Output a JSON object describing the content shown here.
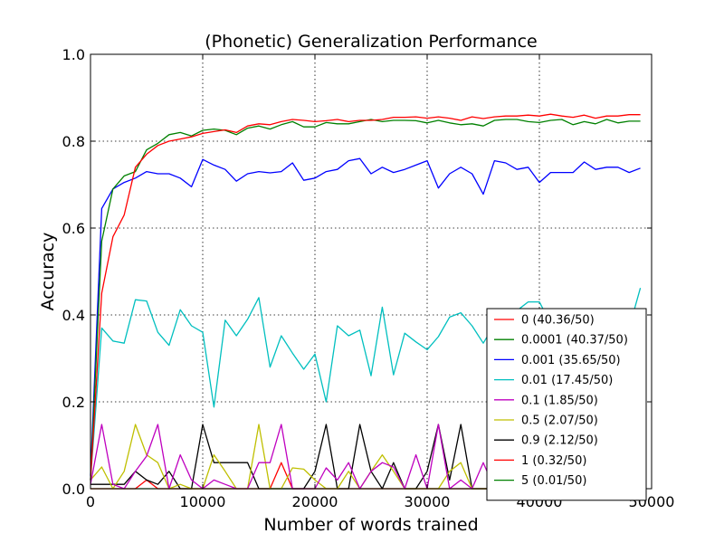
{
  "chart_data": {
    "type": "line",
    "title": "(Phonetic) Generalization Performance",
    "xlabel": "Number of words trained",
    "ylabel": "Accuracy",
    "xlim": [
      0,
      50000
    ],
    "ylim": [
      0,
      1.0
    ],
    "xticks": [
      0,
      10000,
      20000,
      30000,
      40000,
      50000
    ],
    "xtick_labels": [
      "0",
      "10000",
      "20000",
      "30000",
      "40000",
      "50000"
    ],
    "yticks": [
      0,
      0.2,
      0.4,
      0.6,
      0.8,
      1.0
    ],
    "ytick_labels": [
      "0.0",
      "0.2",
      "0.4",
      "0.6",
      "0.8",
      "1.0"
    ],
    "grid": true,
    "legend_position": "lower-right",
    "x": [
      0,
      1000,
      2000,
      3000,
      4000,
      5000,
      6000,
      7000,
      8000,
      9000,
      10000,
      11000,
      12000,
      13000,
      14000,
      15000,
      16000,
      17000,
      18000,
      19000,
      20000,
      21000,
      22000,
      23000,
      24000,
      25000,
      26000,
      27000,
      28000,
      29000,
      30000,
      31000,
      32000,
      33000,
      34000,
      35000,
      36000,
      37000,
      38000,
      39000,
      40000,
      41000,
      42000,
      43000,
      44000,
      45000,
      46000,
      47000,
      48000,
      49000
    ],
    "series": [
      {
        "name": "0 (40.36/50)",
        "color": "#ff0000",
        "values": [
          0.02,
          0.45,
          0.58,
          0.63,
          0.74,
          0.77,
          0.79,
          0.8,
          0.805,
          0.81,
          0.818,
          0.822,
          0.826,
          0.82,
          0.835,
          0.84,
          0.838,
          0.845,
          0.85,
          0.848,
          0.845,
          0.847,
          0.85,
          0.845,
          0.848,
          0.848,
          0.85,
          0.855,
          0.855,
          0.856,
          0.853,
          0.856,
          0.853,
          0.848,
          0.856,
          0.852,
          0.856,
          0.858,
          0.858,
          0.86,
          0.858,
          0.862,
          0.858,
          0.855,
          0.86,
          0.853,
          0.858,
          0.858,
          0.861,
          0.861
        ]
      },
      {
        "name": "0.0001 (40.37/50)",
        "color": "#008000",
        "values": [
          0.02,
          0.57,
          0.69,
          0.72,
          0.73,
          0.78,
          0.795,
          0.815,
          0.82,
          0.812,
          0.825,
          0.828,
          0.825,
          0.815,
          0.83,
          0.835,
          0.828,
          0.838,
          0.845,
          0.833,
          0.833,
          0.843,
          0.84,
          0.84,
          0.845,
          0.85,
          0.845,
          0.848,
          0.848,
          0.847,
          0.842,
          0.848,
          0.842,
          0.838,
          0.84,
          0.835,
          0.848,
          0.85,
          0.85,
          0.845,
          0.843,
          0.848,
          0.85,
          0.838,
          0.845,
          0.84,
          0.85,
          0.842,
          0.846,
          0.846
        ]
      },
      {
        "name": "0.001 (35.65/50)",
        "color": "#0000ff",
        "values": [
          0.03,
          0.645,
          0.69,
          0.705,
          0.715,
          0.73,
          0.725,
          0.725,
          0.715,
          0.695,
          0.758,
          0.745,
          0.735,
          0.708,
          0.725,
          0.73,
          0.727,
          0.73,
          0.75,
          0.71,
          0.715,
          0.73,
          0.735,
          0.755,
          0.76,
          0.725,
          0.74,
          0.728,
          0.735,
          0.745,
          0.755,
          0.692,
          0.725,
          0.74,
          0.725,
          0.678,
          0.755,
          0.75,
          0.735,
          0.74,
          0.705,
          0.728,
          0.728,
          0.728,
          0.752,
          0.735,
          0.74,
          0.74,
          0.728,
          0.738
        ]
      },
      {
        "name": "0.01 (17.45/50)",
        "color": "#00bfbf",
        "values": [
          0.02,
          0.37,
          0.34,
          0.335,
          0.435,
          0.432,
          0.36,
          0.33,
          0.412,
          0.375,
          0.36,
          0.188,
          0.388,
          0.352,
          0.39,
          0.44,
          0.28,
          0.352,
          0.312,
          0.275,
          0.31,
          0.2,
          0.375,
          0.352,
          0.365,
          0.26,
          0.418,
          0.262,
          0.358,
          0.338,
          0.32,
          0.35,
          0.395,
          0.405,
          0.375,
          0.335,
          0.378,
          0.38,
          0.41,
          0.43,
          0.43,
          0.38,
          0.365,
          0.36,
          0.37,
          0.36,
          0.37,
          0.38,
          0.37,
          0.462
        ]
      },
      {
        "name": "0.1 (1.85/50)",
        "color": "#bf00bf",
        "values": [
          0.01,
          0.148,
          0.01,
          0.0,
          0.04,
          0.075,
          0.148,
          0.0,
          0.078,
          0.02,
          0.0,
          0.02,
          0.01,
          0.0,
          0.0,
          0.06,
          0.06,
          0.148,
          0.0,
          0.0,
          0.0,
          0.048,
          0.02,
          0.06,
          0.0,
          0.04,
          0.06,
          0.05,
          0.0,
          0.078,
          0.0,
          0.148,
          0.0,
          0.02,
          0.0,
          0.06,
          0.0,
          0.0,
          0.02,
          0.0,
          0.0,
          0.0,
          0.02,
          0.0,
          0.0,
          0.0,
          0.0,
          0.0,
          0.04,
          0.0
        ]
      },
      {
        "name": "0.5 (2.07/50)",
        "color": "#bfbf00",
        "values": [
          0.02,
          0.05,
          0.0,
          0.04,
          0.148,
          0.078,
          0.06,
          0.0,
          0.01,
          0.0,
          0.0,
          0.078,
          0.04,
          0.0,
          0.0,
          0.148,
          0.0,
          0.0,
          0.048,
          0.045,
          0.02,
          0.0,
          0.0,
          0.04,
          0.0,
          0.04,
          0.078,
          0.04,
          0.0,
          0.0,
          0.0,
          0.0,
          0.04,
          0.06,
          0.0,
          0.0,
          0.0,
          0.02,
          0.0,
          0.0,
          0.0,
          0.02,
          0.0,
          0.0,
          0.0,
          0.0,
          0.0,
          0.0,
          0.0,
          0.0
        ]
      },
      {
        "name": "0.9 (2.12/50)",
        "color": "#000000",
        "values": [
          0.01,
          0.01,
          0.01,
          0.01,
          0.04,
          0.02,
          0.01,
          0.04,
          0.0,
          0.0,
          0.148,
          0.06,
          0.06,
          0.06,
          0.06,
          0.0,
          0.0,
          0.0,
          0.0,
          0.0,
          0.04,
          0.148,
          0.0,
          0.0,
          0.148,
          0.04,
          0.0,
          0.06,
          0.0,
          0.0,
          0.04,
          0.148,
          0.02,
          0.148,
          0.0,
          0.0,
          0.0,
          0.0,
          0.0,
          0.0,
          0.0,
          0.0,
          0.0,
          0.0,
          0.0,
          0.0,
          0.0,
          0.0,
          0.0,
          0.0
        ]
      },
      {
        "name": "1 (0.32/50)",
        "color": "#ff0000",
        "values": [
          0.0,
          0.0,
          0.0,
          0.0,
          0.0,
          0.02,
          0.0,
          0.0,
          0.0,
          0.0,
          0.0,
          0.0,
          0.0,
          0.0,
          0.0,
          0.0,
          0.0,
          0.06,
          0.0,
          0.0,
          0.0,
          0.0,
          0.0,
          0.0,
          0.0,
          0.0,
          0.0,
          0.0,
          0.0,
          0.0,
          0.0,
          0.0,
          0.0,
          0.0,
          0.0,
          0.0,
          0.0,
          0.0,
          0.0,
          0.0,
          0.0,
          0.0,
          0.0,
          0.0,
          0.0,
          0.0,
          0.0,
          0.0,
          0.0,
          0.0
        ]
      },
      {
        "name": "5 (0.01/50)",
        "color": "#008000",
        "values": [
          0.0,
          0.0,
          0.0,
          0.0,
          0.0,
          0.0,
          0.0,
          0.0,
          0.0,
          0.0,
          0.0,
          0.0,
          0.0,
          0.0,
          0.0,
          0.0,
          0.0,
          0.0,
          0.0,
          0.0,
          0.0,
          0.0,
          0.0,
          0.0,
          0.0,
          0.0,
          0.0,
          0.0,
          0.0,
          0.0,
          0.0,
          0.0,
          0.0,
          0.0,
          0.0,
          0.0,
          0.0,
          0.0,
          0.0,
          0.0,
          0.0,
          0.0,
          0.0,
          0.0,
          0.0,
          0.0,
          0.0,
          0.0,
          0.0,
          0.0
        ]
      }
    ]
  }
}
